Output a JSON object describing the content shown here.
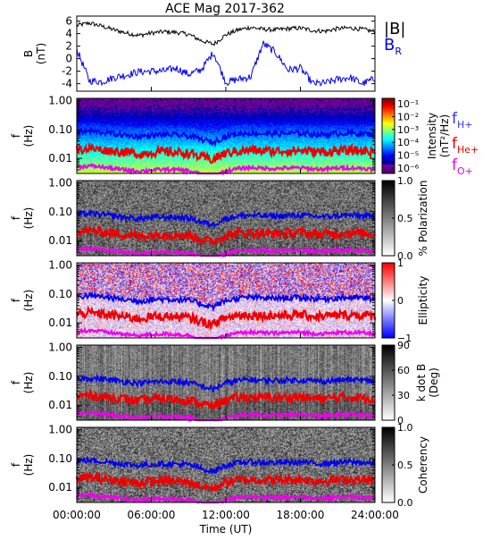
{
  "title": "ACE Mag 2017-362",
  "x_axis": {
    "label": "Time (UT)",
    "ticks": [
      "00:00:00",
      "06:00:00",
      "12:00:00",
      "18:00:00",
      "24:00:00"
    ],
    "hours": [
      0,
      6,
      12,
      18,
      24
    ]
  },
  "freq_axis": {
    "label_f": "f",
    "label_unit": "(Hz)",
    "ticks": [
      "1.00",
      "0.10",
      "0.01"
    ],
    "values": [
      1.0,
      0.1,
      0.01
    ],
    "range": [
      0.003,
      1.2
    ]
  },
  "colors": {
    "B_total": "#000000",
    "B_R": "#0000ee",
    "f_H": "#0000ee",
    "f_He": "#ee0000",
    "f_O": "#ee00ee"
  },
  "chart_data": [
    {
      "type": "line",
      "panel": "B",
      "ylabel_1": "B",
      "ylabel_2": "(nT)",
      "ylim": [
        -5.2,
        6.8
      ],
      "yticks": [
        6,
        4,
        2,
        0,
        -2,
        -4
      ],
      "legend": [
        {
          "label": "|B|",
          "color": "#000000"
        },
        {
          "label_main": "B",
          "label_sub": "R",
          "color": "#0000ee"
        }
      ],
      "x_hours": [
        0,
        1,
        2,
        3,
        4,
        5,
        6,
        7,
        8,
        9,
        10,
        11,
        12,
        13,
        14,
        15,
        16,
        17,
        18,
        19,
        20,
        21,
        22,
        23,
        24
      ],
      "series": [
        {
          "name": "|B|",
          "values": [
            5.3,
            5.7,
            5.2,
            4.6,
            4.1,
            3.7,
            4.1,
            4.3,
            4.2,
            3.9,
            2.9,
            2.3,
            3.8,
            4.6,
            5.0,
            4.7,
            4.6,
            4.8,
            4.9,
            4.5,
            4.4,
            4.8,
            4.9,
            4.7,
            4.3
          ]
        },
        {
          "name": "B_R",
          "values": [
            1.5,
            -3.5,
            -3.7,
            -3.0,
            -2.6,
            -2.1,
            -2.0,
            -2.0,
            -1.5,
            -2.5,
            -1.8,
            1.0,
            -3.8,
            -3.3,
            -2.9,
            2.4,
            1.0,
            -1.8,
            -1.5,
            -4.0,
            -3.9,
            -3.3,
            -3.0,
            -4.0,
            -3.2
          ]
        }
      ]
    },
    {
      "type": "heatmap",
      "panel": "intensity",
      "colorbar_label": "Intensity",
      "colorbar_unit": "(nT²/Hz)",
      "colorbar_ticks": [
        "10⁻¹",
        "10⁻²",
        "10⁻³",
        "10⁻⁴",
        "10⁻⁵",
        "10⁻⁶"
      ],
      "colorbar_range": [
        1e-06,
        0.2
      ],
      "colorbar_scale": "log",
      "legend": [
        {
          "label_main": "f",
          "label_sub": "H+",
          "color": "#3333ff"
        },
        {
          "label_main": "f",
          "label_sub": "He+",
          "color": "#ee0000"
        },
        {
          "label_main": "f",
          "label_sub": "O+",
          "color": "#ee00ee"
        }
      ]
    },
    {
      "type": "heatmap",
      "panel": "polarization",
      "colorbar_label": "% Polarization",
      "colorbar_ticks": [
        "1.0",
        "0.5",
        "0.0"
      ],
      "colorbar_range": [
        0,
        1
      ]
    },
    {
      "type": "heatmap",
      "panel": "ellipticity",
      "colorbar_label": "Ellipticity",
      "colorbar_ticks": [
        "1",
        "0",
        "−1"
      ],
      "colorbar_range": [
        -1,
        1
      ]
    },
    {
      "type": "heatmap",
      "panel": "k_dot_b",
      "colorbar_label": "k dot B",
      "colorbar_unit": "(Deg)",
      "colorbar_ticks": [
        "90",
        "60",
        "30",
        "0"
      ],
      "colorbar_range": [
        0,
        90
      ]
    },
    {
      "type": "heatmap",
      "panel": "coherency",
      "colorbar_label": "Coherency",
      "colorbar_ticks": [
        "1.0",
        "0.5",
        "0.0"
      ],
      "colorbar_range": [
        0,
        1
      ]
    }
  ],
  "gyro_lines": {
    "x_hours": [
      0,
      1,
      2,
      3,
      4,
      5,
      6,
      7,
      8,
      9,
      10,
      11,
      12,
      13,
      14,
      15,
      16,
      17,
      18,
      19,
      20,
      21,
      22,
      23,
      24
    ],
    "f_H": [
      0.08,
      0.087,
      0.08,
      0.071,
      0.063,
      0.057,
      0.063,
      0.066,
      0.064,
      0.06,
      0.045,
      0.035,
      0.058,
      0.071,
      0.076,
      0.072,
      0.071,
      0.073,
      0.075,
      0.069,
      0.067,
      0.073,
      0.075,
      0.072,
      0.066
    ],
    "f_He": [
      0.02,
      0.022,
      0.02,
      0.018,
      0.016,
      0.014,
      0.016,
      0.017,
      0.016,
      0.015,
      0.011,
      0.009,
      0.015,
      0.018,
      0.019,
      0.018,
      0.018,
      0.018,
      0.019,
      0.017,
      0.017,
      0.018,
      0.019,
      0.018,
      0.017
    ],
    "f_O": [
      0.005,
      0.0055,
      0.005,
      0.0044,
      0.0039,
      0.0036,
      0.0039,
      0.0041,
      0.004,
      0.0037,
      0.0028,
      0.0022,
      0.0036,
      0.0044,
      0.0048,
      0.0045,
      0.0044,
      0.0046,
      0.0047,
      0.0043,
      0.0042,
      0.0046,
      0.0047,
      0.0045,
      0.0041
    ]
  }
}
